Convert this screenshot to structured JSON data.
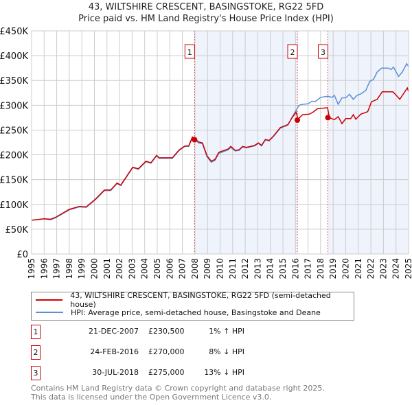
{
  "title_line1": "43, WILTSHIRE CRESCENT, BASINGSTOKE, RG22 5FD",
  "title_line2": "Price paid vs. HM Land Registry's House Price Index (HPI)",
  "colors": {
    "property": "#cc0000",
    "hpi": "#5b8fd6",
    "shade": "#eef3fc"
  },
  "chart_data": {
    "type": "line",
    "title": "Price paid vs. HM Land Registry's House Price Index (HPI)",
    "xlim": [
      1995,
      2025
    ],
    "ylim": [
      0,
      450000
    ],
    "grid": true,
    "y_ticks": [
      {
        "v": 0,
        "l": "£0"
      },
      {
        "v": 50000,
        "l": "£50K"
      },
      {
        "v": 100000,
        "l": "£100K"
      },
      {
        "v": 150000,
        "l": "£150K"
      },
      {
        "v": 200000,
        "l": "£200K"
      },
      {
        "v": 250000,
        "l": "£250K"
      },
      {
        "v": 300000,
        "l": "£300K"
      },
      {
        "v": 350000,
        "l": "£350K"
      },
      {
        "v": 400000,
        "l": "£400K"
      },
      {
        "v": 450000,
        "l": "£450K"
      }
    ],
    "x_ticks": [
      "1995",
      "1996",
      "1997",
      "1998",
      "1999",
      "2000",
      "2001",
      "2002",
      "2003",
      "2004",
      "2005",
      "2006",
      "2007",
      "2008",
      "2009",
      "2010",
      "2011",
      "2012",
      "2013",
      "2014",
      "2015",
      "2016",
      "2017",
      "2018",
      "2019",
      "2020",
      "2021",
      "2022",
      "2023",
      "2024",
      "2025"
    ],
    "series": [
      {
        "name": "43, WILTSHIRE CRESCENT, BASINGSTOKE, RG22 5FD (semi-detached house)",
        "key": "property",
        "points": [
          [
            1995.0,
            68
          ],
          [
            1996.0,
            71
          ],
          [
            1996.5,
            70
          ],
          [
            1996.9,
            74
          ],
          [
            1998.0,
            90
          ],
          [
            1998.8,
            96
          ],
          [
            1999.35,
            95
          ],
          [
            2000.1,
            111
          ],
          [
            2000.8,
            129
          ],
          [
            2001.3,
            129
          ],
          [
            2001.8,
            143
          ],
          [
            2002.1,
            139
          ],
          [
            2003.05,
            175
          ],
          [
            2003.5,
            172
          ],
          [
            2004.1,
            187
          ],
          [
            2004.5,
            184
          ],
          [
            2004.95,
            199
          ],
          [
            2005.15,
            194
          ],
          [
            2006.2,
            194
          ],
          [
            2006.75,
            210
          ],
          [
            2007.2,
            218
          ],
          [
            2007.5,
            218
          ],
          [
            2007.8,
            236
          ],
          [
            2008.05,
            231
          ],
          [
            2008.3,
            226
          ],
          [
            2008.6,
            224
          ],
          [
            2008.96,
            198
          ],
          [
            2009.3,
            187
          ],
          [
            2009.6,
            191
          ],
          [
            2009.9,
            205
          ],
          [
            2010.65,
            212
          ],
          [
            2010.85,
            217
          ],
          [
            2011.2,
            209
          ],
          [
            2011.5,
            210
          ],
          [
            2011.8,
            217
          ],
          [
            2012.1,
            215
          ],
          [
            2012.75,
            219
          ],
          [
            2013.05,
            224
          ],
          [
            2013.3,
            219
          ],
          [
            2013.6,
            231
          ],
          [
            2013.9,
            229
          ],
          [
            2014.25,
            238
          ],
          [
            2014.8,
            255
          ],
          [
            2015.1,
            258
          ],
          [
            2015.4,
            261
          ],
          [
            2015.73,
            275
          ],
          [
            2016.05,
            286
          ],
          [
            2016.2,
            272
          ],
          [
            2016.57,
            281
          ],
          [
            2017.1,
            282
          ],
          [
            2017.4,
            286
          ],
          [
            2017.75,
            293
          ],
          [
            2018.55,
            295
          ],
          [
            2018.7,
            275
          ],
          [
            2019.1,
            271
          ],
          [
            2019.4,
            277
          ],
          [
            2019.7,
            263
          ],
          [
            2020.0,
            273
          ],
          [
            2020.4,
            273
          ],
          [
            2020.6,
            281
          ],
          [
            2020.8,
            272
          ],
          [
            2021.2,
            282
          ],
          [
            2021.75,
            287
          ],
          [
            2022.05,
            307
          ],
          [
            2022.5,
            312
          ],
          [
            2022.9,
            327
          ],
          [
            2023.75,
            327
          ],
          [
            2023.95,
            322
          ],
          [
            2024.3,
            312
          ],
          [
            2024.9,
            335
          ],
          [
            2025.0,
            328
          ]
        ]
      },
      {
        "name": "HPI: Average price, semi-detached house, Basingstoke and Deane",
        "key": "hpi",
        "points": [
          [
            1995.0,
            68
          ],
          [
            1996.0,
            71
          ],
          [
            1996.5,
            69
          ],
          [
            1996.9,
            73
          ],
          [
            1998.0,
            89
          ],
          [
            1998.8,
            95
          ],
          [
            1999.35,
            94
          ],
          [
            2000.1,
            110
          ],
          [
            2000.8,
            128
          ],
          [
            2001.3,
            128
          ],
          [
            2001.8,
            142
          ],
          [
            2002.1,
            138
          ],
          [
            2003.05,
            174
          ],
          [
            2003.5,
            171
          ],
          [
            2004.1,
            186
          ],
          [
            2004.5,
            183
          ],
          [
            2004.95,
            198
          ],
          [
            2005.15,
            193
          ],
          [
            2006.2,
            193
          ],
          [
            2006.75,
            209
          ],
          [
            2007.2,
            217
          ],
          [
            2007.5,
            217
          ],
          [
            2007.8,
            234
          ],
          [
            2008.05,
            229
          ],
          [
            2008.3,
            224
          ],
          [
            2008.6,
            222
          ],
          [
            2008.96,
            196
          ],
          [
            2009.3,
            185
          ],
          [
            2009.6,
            189
          ],
          [
            2009.9,
            203
          ],
          [
            2010.65,
            210
          ],
          [
            2010.85,
            215
          ],
          [
            2011.2,
            208
          ],
          [
            2011.5,
            209
          ],
          [
            2011.8,
            216
          ],
          [
            2012.1,
            214
          ],
          [
            2012.75,
            218
          ],
          [
            2013.05,
            223
          ],
          [
            2013.3,
            218
          ],
          [
            2013.6,
            230
          ],
          [
            2013.9,
            228
          ],
          [
            2014.25,
            237
          ],
          [
            2014.8,
            254
          ],
          [
            2015.1,
            257
          ],
          [
            2015.4,
            260
          ],
          [
            2015.73,
            276
          ],
          [
            2016.1,
            292
          ],
          [
            2016.3,
            300
          ],
          [
            2016.6,
            302
          ],
          [
            2017.0,
            303
          ],
          [
            2017.3,
            308
          ],
          [
            2017.6,
            308
          ],
          [
            2018.0,
            316
          ],
          [
            2018.58,
            318
          ],
          [
            2018.9,
            316
          ],
          [
            2019.1,
            320
          ],
          [
            2019.4,
            302
          ],
          [
            2019.7,
            315
          ],
          [
            2020.0,
            315
          ],
          [
            2020.3,
            322
          ],
          [
            2020.6,
            312
          ],
          [
            2020.9,
            320
          ],
          [
            2021.2,
            323
          ],
          [
            2021.6,
            330
          ],
          [
            2021.9,
            348
          ],
          [
            2022.2,
            352
          ],
          [
            2022.5,
            367
          ],
          [
            2022.85,
            375
          ],
          [
            2023.4,
            375
          ],
          [
            2023.6,
            372
          ],
          [
            2023.8,
            377
          ],
          [
            2024.2,
            358
          ],
          [
            2024.5,
            367
          ],
          [
            2024.85,
            384
          ],
          [
            2025.0,
            378
          ]
        ]
      }
    ],
    "value_unit": "thousand GBP",
    "sales": [
      {
        "num": "1",
        "x": 2007.97,
        "value": 230.5
      },
      {
        "num": "2",
        "x": 2016.15,
        "value": 270
      },
      {
        "num": "3",
        "x": 2018.58,
        "value": 275
      }
    ],
    "shaded_ranges": [
      [
        2007.97,
        2016.15
      ],
      [
        2018.58,
        2025
      ]
    ],
    "legend_placement": "bottom"
  },
  "legend": {
    "property": "43, WILTSHIRE CRESCENT, BASINGSTOKE, RG22 5FD (semi-detached house)",
    "hpi": "HPI: Average price, semi-detached house, Basingstoke and Deane"
  },
  "sales_table": [
    {
      "num": "1",
      "date": "21-DEC-2007",
      "price": "£230,500",
      "hpi": "1% ↑ HPI"
    },
    {
      "num": "2",
      "date": "24-FEB-2016",
      "price": "£270,000",
      "hpi": "8% ↓ HPI"
    },
    {
      "num": "3",
      "date": "30-JUL-2018",
      "price": "£275,000",
      "hpi": "13% ↓ HPI"
    }
  ],
  "footer_line1": "Contains HM Land Registry data © Crown copyright and database right 2025.",
  "footer_line2": "This data is licensed under the Open Government Licence v3.0."
}
